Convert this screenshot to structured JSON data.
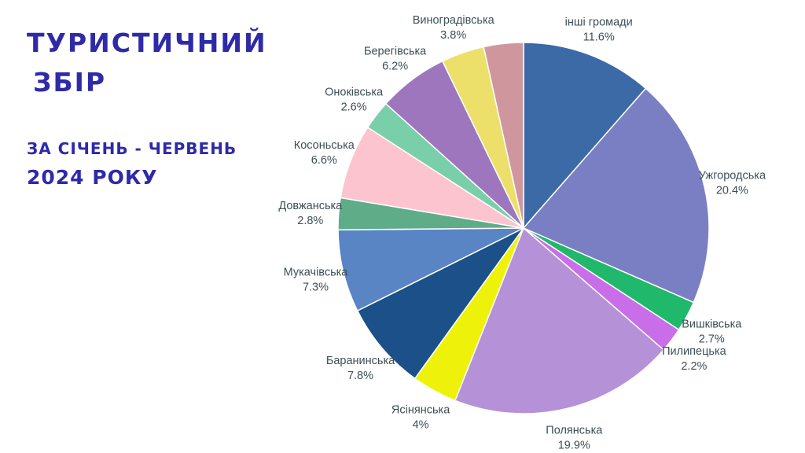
{
  "header": {
    "title_line1": "ТУРИСТИЧНИЙ",
    "title_line2": "ЗБІР",
    "subtitle_line1": "ЗА СІЧЕНЬ - ЧЕРВЕНЬ",
    "subtitle_line2": "2024 РОКУ"
  },
  "chart_data": {
    "type": "pie",
    "slices": [
      {
        "label": "інші громади",
        "value": 11.6,
        "display": "11.6%",
        "color": "#3b6aa6"
      },
      {
        "label": "Ужгородська",
        "value": 20.4,
        "display": "20.4%",
        "color": "#7a7fc3"
      },
      {
        "label": "Вишківська",
        "value": 2.7,
        "display": "2.7%",
        "color": "#20b86a"
      },
      {
        "label": "Пилипецька",
        "value": 2.2,
        "display": "2.2%",
        "color": "#c96de8"
      },
      {
        "label": "Полянська",
        "value": 19.9,
        "display": "19.9%",
        "color": "#b591d8"
      },
      {
        "label": "Ясінянська",
        "value": 4.0,
        "display": "4%",
        "color": "#eef20a"
      },
      {
        "label": "Баранинська",
        "value": 7.8,
        "display": "7.8%",
        "color": "#1b5089"
      },
      {
        "label": "Мукачівська",
        "value": 7.3,
        "display": "7.3%",
        "color": "#5985c4"
      },
      {
        "label": "Довжанська",
        "value": 2.8,
        "display": "2.8%",
        "color": "#5fac88"
      },
      {
        "label": "Косоньська",
        "value": 6.6,
        "display": "6.6%",
        "color": "#fcc4cf"
      },
      {
        "label": "Оноківська",
        "value": 2.6,
        "display": "2.6%",
        "color": "#79cfa9"
      },
      {
        "label": "Берегівська",
        "value": 6.2,
        "display": "6.2%",
        "color": "#9e76be"
      },
      {
        "label": "Виноградівська",
        "value": 3.8,
        "display": "3.8%",
        "color": "#ece06a"
      },
      {
        "label": "",
        "value": 3.5,
        "display": "",
        "color": "#cf979d"
      }
    ]
  }
}
